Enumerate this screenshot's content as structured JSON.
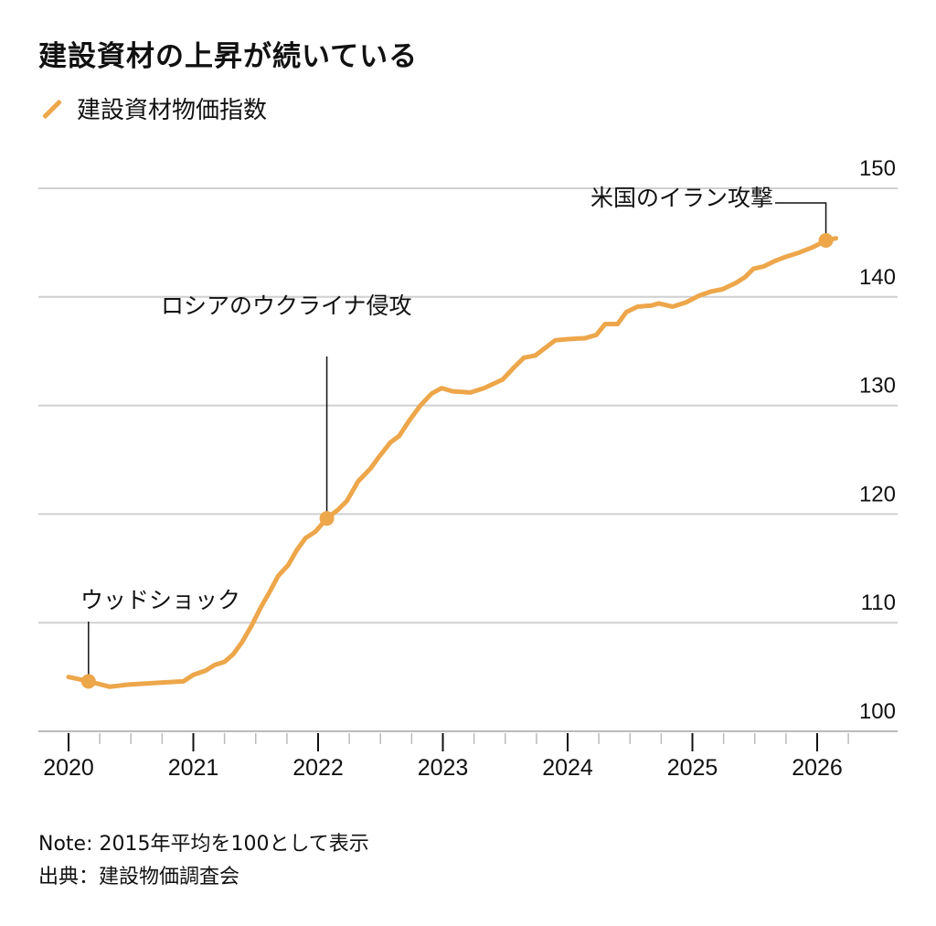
{
  "chart_data": {
    "type": "line",
    "title": "建設資材の上昇が続いている",
    "legend": [
      "建設資材物価指数"
    ],
    "legend_placement": "top-left",
    "xlabel": "",
    "ylabel": "",
    "xlim": [
      2019.9,
      2026.25
    ],
    "ylim": [
      100,
      150
    ],
    "x_ticks": [
      "2020",
      "2021",
      "2022",
      "2023",
      "2024",
      "2025",
      "2026"
    ],
    "y_ticks": [
      "100",
      "110",
      "120",
      "130",
      "140",
      "150"
    ],
    "y_tick_values": [
      100,
      110,
      120,
      130,
      140,
      150
    ],
    "grid": "horizontal",
    "color": "#EDA64A",
    "series": [
      {
        "name": "建設資材物価指数",
        "x": [
          2020.0,
          2020.16,
          2020.33,
          2020.48,
          2020.62,
          2020.77,
          2020.92,
          2021.0,
          2021.1,
          2021.17,
          2021.25,
          2021.32,
          2021.39,
          2021.47,
          2021.54,
          2021.61,
          2021.68,
          2021.76,
          2021.83,
          2021.9,
          2021.98,
          2022.07,
          2022.16,
          2022.23,
          2022.32,
          2022.42,
          2022.49,
          2022.58,
          2022.65,
          2022.73,
          2022.82,
          2022.91,
          2022.99,
          2023.08,
          2023.22,
          2023.33,
          2023.48,
          2023.57,
          2023.65,
          2023.74,
          2023.82,
          2023.9,
          2023.99,
          2024.14,
          2024.23,
          2024.3,
          2024.4,
          2024.47,
          2024.56,
          2024.67,
          2024.73,
          2024.84,
          2024.95,
          2025.05,
          2025.15,
          2025.24,
          2025.35,
          2025.42,
          2025.49,
          2025.57,
          2025.66,
          2025.75,
          2025.86,
          2025.97,
          2026.07,
          2026.15
        ],
        "values": [
          105.0,
          104.6,
          104.1,
          104.3,
          104.4,
          104.5,
          104.6,
          105.2,
          105.6,
          106.1,
          106.4,
          107.1,
          108.2,
          109.8,
          111.4,
          112.8,
          114.3,
          115.3,
          116.7,
          117.8,
          118.4,
          119.6,
          120.4,
          121.2,
          123.0,
          124.2,
          125.3,
          126.6,
          127.2,
          128.6,
          130.0,
          131.1,
          131.6,
          131.3,
          131.2,
          131.6,
          132.4,
          133.5,
          134.4,
          134.6,
          135.3,
          136.0,
          136.1,
          136.2,
          136.5,
          137.5,
          137.5,
          138.6,
          139.1,
          139.2,
          139.4,
          139.1,
          139.5,
          140.1,
          140.5,
          140.7,
          141.3,
          141.8,
          142.6,
          142.8,
          143.3,
          143.7,
          144.1,
          144.6,
          145.2,
          145.4
        ]
      }
    ],
    "annotations": [
      {
        "label": "ウッドショック",
        "x": 2020.16,
        "y": 104.6
      },
      {
        "label": "ロシアのウクライナ侵攻",
        "x": 2022.07,
        "y": 119.6
      },
      {
        "label": "米国のイラン攻撃",
        "x": 2026.07,
        "y": 145.2
      }
    ]
  },
  "notes": {
    "note": "Note: 2015年平均を100として表示",
    "source": "出典：建設物価調査会"
  }
}
